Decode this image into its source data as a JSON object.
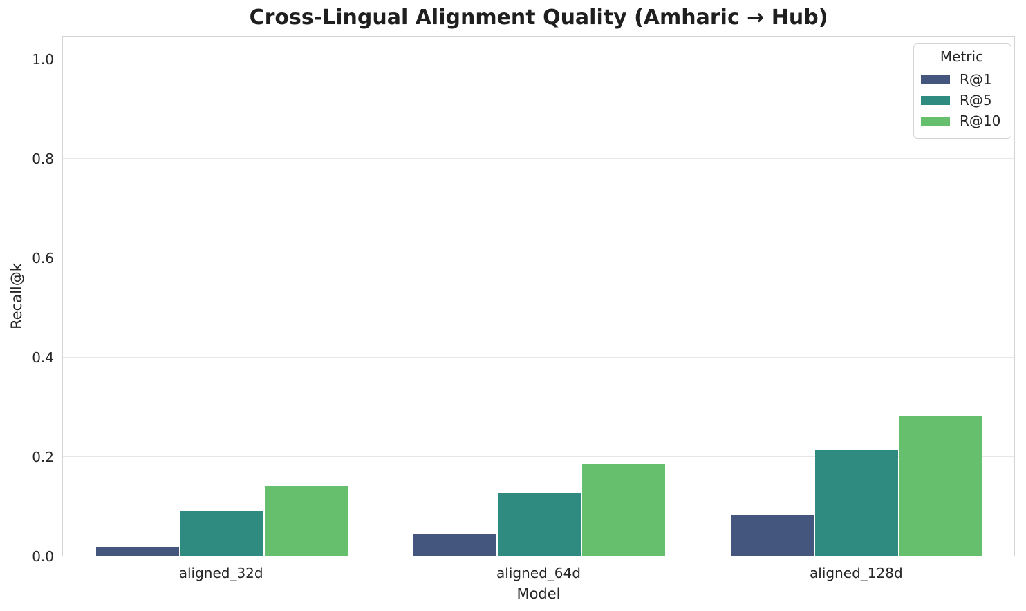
{
  "chart_data": {
    "type": "bar",
    "title": "Cross-Lingual Alignment Quality (Amharic → Hub)",
    "xlabel": "Model",
    "ylabel": "Recall@k",
    "categories": [
      "aligned_32d",
      "aligned_64d",
      "aligned_128d"
    ],
    "series": [
      {
        "name": "R@1",
        "color": "#45567e",
        "values": [
          0.018,
          0.045,
          0.082
        ]
      },
      {
        "name": "R@5",
        "color": "#2f8a80",
        "values": [
          0.09,
          0.127,
          0.213
        ]
      },
      {
        "name": "R@10",
        "color": "#65bf6c",
        "values": [
          0.14,
          0.185,
          0.28
        ]
      }
    ],
    "legend_title": "Metric",
    "legend_position": "upper right",
    "ylim": [
      0.0,
      1.047
    ],
    "yticks": [
      "0.0",
      "0.2",
      "0.4",
      "0.6",
      "0.8",
      "1.0"
    ],
    "grid": "horizontal",
    "accent_text_color": "#262626"
  }
}
